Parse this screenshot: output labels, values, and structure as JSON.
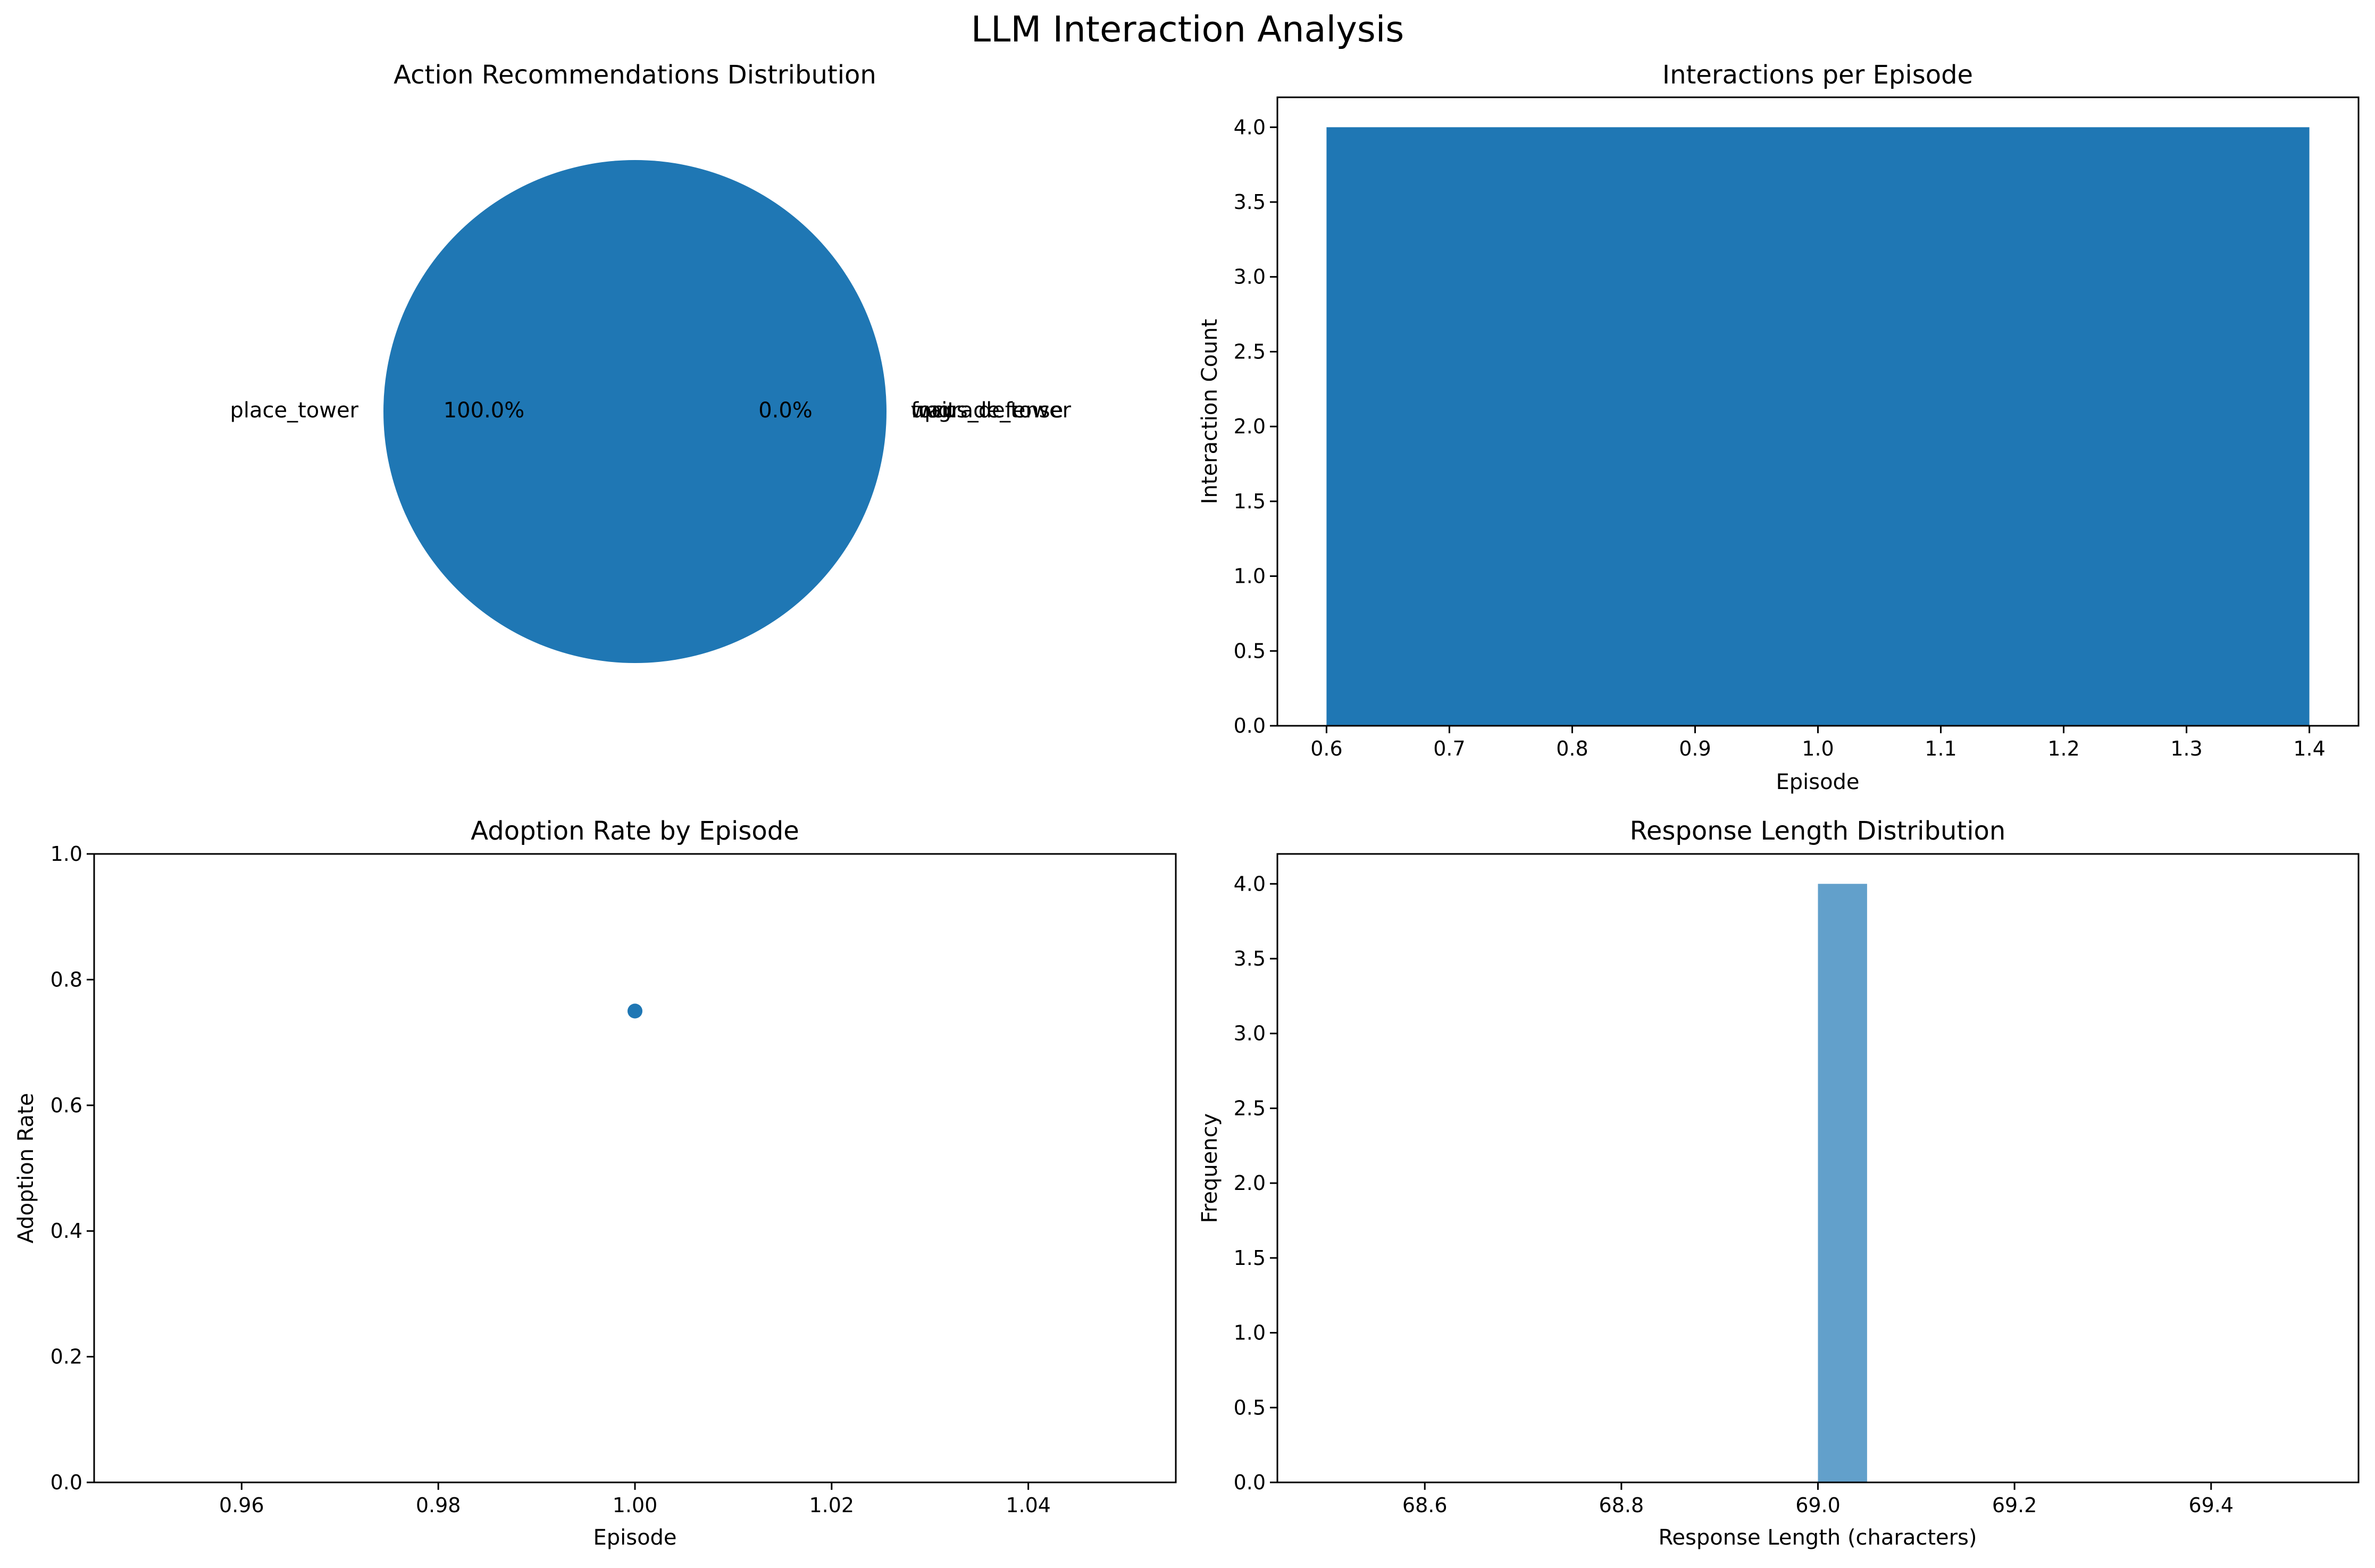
{
  "figure": {
    "title": "LLM Interaction Analysis",
    "colors": {
      "primary": "#1f77b4",
      "hist": "#62a0cb",
      "text": "#000000",
      "background": "#ffffff"
    }
  },
  "chart_data": [
    {
      "type": "pie",
      "title": "Action Recommendations Distribution",
      "labels": [
        "place_tower",
        "upgrade_tower",
        "wait",
        "focus_defense"
      ],
      "values": [
        100.0,
        0.0,
        0.0,
        0.0
      ],
      "autopct_labels": [
        "100.0%",
        "0.0%",
        "0.0%",
        "0.0%"
      ],
      "visible_labels": {
        "left": "place_tower",
        "right_overlapping": [
          "upgrade_tower",
          "wait",
          "focus_defense"
        ],
        "pct_left": "100.0%",
        "pct_right": "0.0%"
      }
    },
    {
      "type": "bar",
      "title": "Interactions per Episode",
      "xlabel": "Episode",
      "ylabel": "Interaction Count",
      "categories": [
        1
      ],
      "values": [
        4
      ],
      "bar_width": 0.8,
      "xlim": [
        0.56,
        1.44
      ],
      "ylim": [
        0,
        4.2
      ],
      "xticks": [
        "0.6",
        "0.7",
        "0.8",
        "0.9",
        "1.0",
        "1.1",
        "1.2",
        "1.3",
        "1.4"
      ],
      "yticks": [
        "0.0",
        "0.5",
        "1.0",
        "1.5",
        "2.0",
        "2.5",
        "3.0",
        "3.5",
        "4.0"
      ],
      "grid": false
    },
    {
      "type": "scatter",
      "title": "Adoption Rate by Episode",
      "xlabel": "Episode",
      "ylabel": "Adoption Rate",
      "x": [
        1.0
      ],
      "y": [
        0.75
      ],
      "xlim": [
        0.945,
        1.055
      ],
      "ylim": [
        0,
        1
      ],
      "xticks": [
        "0.96",
        "0.98",
        "1.00",
        "1.02",
        "1.04"
      ],
      "yticks": [
        "0.0",
        "0.2",
        "0.4",
        "0.6",
        "0.8",
        "1.0"
      ],
      "grid": false
    },
    {
      "type": "bar",
      "title": "Response Length Distribution",
      "xlabel": "Response Length (characters)",
      "ylabel": "Frequency",
      "bins": [
        {
          "start": 69.0,
          "end": 69.05,
          "count": 4
        }
      ],
      "xlim": [
        68.45,
        69.55
      ],
      "ylim": [
        0,
        4.2
      ],
      "xticks": [
        "68.6",
        "68.8",
        "69.0",
        "69.2",
        "69.4"
      ],
      "yticks": [
        "0.0",
        "0.5",
        "1.0",
        "1.5",
        "2.0",
        "2.5",
        "3.0",
        "3.5",
        "4.0"
      ],
      "grid": false
    }
  ]
}
